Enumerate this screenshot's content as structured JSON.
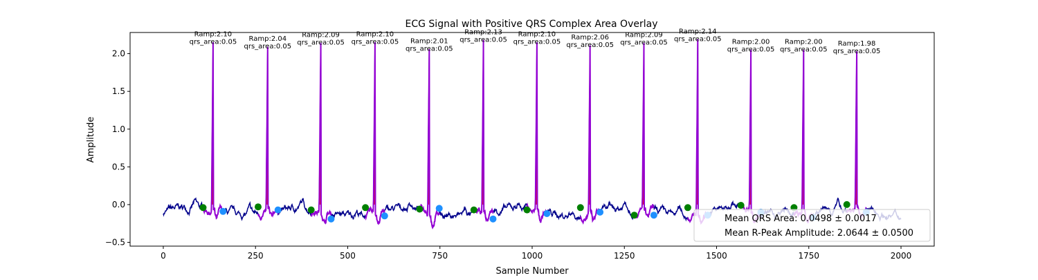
{
  "chart_data": {
    "type": "line",
    "title": "ECG Signal with Positive QRS Complex Area Overlay",
    "xlabel": "Sample Number",
    "ylabel": "Amplitude",
    "xlim": [
      -90,
      2090
    ],
    "ylim": [
      -0.55,
      2.28
    ],
    "xticks": [
      0,
      250,
      500,
      750,
      1000,
      1250,
      1500,
      1750,
      2000
    ],
    "yticks": [
      -0.5,
      0.0,
      0.5,
      1.0,
      1.5,
      2.0
    ],
    "xtick_labels": [
      "0",
      "250",
      "500",
      "750",
      "1000",
      "1250",
      "1500",
      "1750",
      "2000"
    ],
    "ytick_labels": [
      "−0.5",
      "0.0",
      "0.5",
      "1.0",
      "1.5",
      "2.0"
    ],
    "grid": false,
    "colors": {
      "signal": "#00008b",
      "qrs_segment": "#9400d3",
      "qrs_fill": "#ff0000",
      "q_point": "#008000",
      "s_point": "#1e90ff"
    },
    "beats": [
      {
        "r_x": 135,
        "ramp": 2.1,
        "q_x": 108,
        "q_y": -0.04,
        "s_x": 162,
        "s_y": -0.09
      },
      {
        "r_x": 283,
        "ramp": 2.04,
        "q_x": 257,
        "q_y": -0.03,
        "s_x": 311,
        "s_y": -0.07
      },
      {
        "r_x": 427,
        "ramp": 2.09,
        "q_x": 401,
        "q_y": -0.07,
        "s_x": 455,
        "s_y": -0.19
      },
      {
        "r_x": 574,
        "ramp": 2.1,
        "q_x": 548,
        "q_y": -0.04,
        "s_x": 600,
        "s_y": -0.15
      },
      {
        "r_x": 721,
        "ramp": 2.01,
        "q_x": 695,
        "q_y": -0.06,
        "s_x": 748,
        "s_y": -0.05
      },
      {
        "r_x": 868,
        "ramp": 2.13,
        "q_x": 842,
        "q_y": -0.07,
        "s_x": 894,
        "s_y": -0.19
      },
      {
        "r_x": 1013,
        "ramp": 2.1,
        "q_x": 986,
        "q_y": -0.07,
        "s_x": 1040,
        "s_y": -0.12
      },
      {
        "r_x": 1157,
        "ramp": 2.06,
        "q_x": 1131,
        "q_y": -0.04,
        "s_x": 1184,
        "s_y": -0.1
      },
      {
        "r_x": 1303,
        "ramp": 2.09,
        "q_x": 1277,
        "q_y": -0.14,
        "s_x": 1330,
        "s_y": -0.14
      },
      {
        "r_x": 1449,
        "ramp": 2.14,
        "q_x": 1422,
        "q_y": -0.04,
        "s_x": 1476,
        "s_y": -0.14
      },
      {
        "r_x": 1593,
        "ramp": 2.0,
        "q_x": 1566,
        "q_y": -0.01,
        "s_x": 1620,
        "s_y": -0.1
      },
      {
        "r_x": 1736,
        "ramp": 2.0,
        "q_x": 1710,
        "q_y": -0.04,
        "s_x": 1762,
        "s_y": -0.17
      },
      {
        "r_x": 1880,
        "ramp": 1.98,
        "q_x": 1853,
        "q_y": 0.0,
        "s_x": 1906,
        "s_y": -0.1
      }
    ],
    "annotations": [
      {
        "line1": "Ramp:2.10",
        "line2": "qrs_area:0.05"
      },
      {
        "line1": "Ramp:2.04",
        "line2": "qrs_area:0.05"
      },
      {
        "line1": "Ramp:2.09",
        "line2": "qrs_area:0.05"
      },
      {
        "line1": "Ramp:2.10",
        "line2": "qrs_area:0.05"
      },
      {
        "line1": "Ramp:2.01",
        "line2": "qrs_area:0.05"
      },
      {
        "line1": "Ramp:2.13",
        "line2": "qrs_area:0.05"
      },
      {
        "line1": "Ramp:2.10",
        "line2": "qrs_area:0.05"
      },
      {
        "line1": "Ramp:2.06",
        "line2": "qrs_area:0.05"
      },
      {
        "line1": "Ramp:2.09",
        "line2": "qrs_area:0.05"
      },
      {
        "line1": "Ramp:2.14",
        "line2": "qrs_area:0.05"
      },
      {
        "line1": "Ramp:2.00",
        "line2": "qrs_area:0.05"
      },
      {
        "line1": "Ramp:2.00",
        "line2": "qrs_area:0.05"
      },
      {
        "line1": "Ramp:1.98",
        "line2": "qrs_area:0.05"
      }
    ],
    "legend": {
      "location": "lower-right",
      "entries": [
        "Mean QRS Area: 0.0498 ± 0.0017",
        "Mean R-Peak Amplitude: 2.0644 ± 0.0500"
      ]
    }
  }
}
